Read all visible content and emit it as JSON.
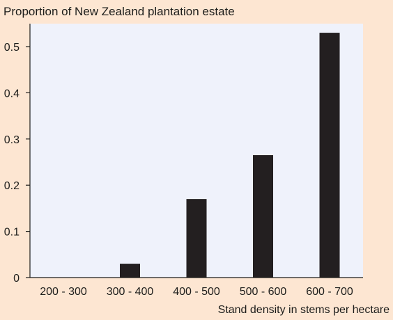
{
  "chart_data": {
    "type": "bar",
    "title": "Proportion of New Zealand plantation estate",
    "xlabel": "Stand density in stems per hectare",
    "ylabel": "",
    "categories": [
      "200 - 300",
      "300 - 400",
      "400 - 500",
      "500 - 600",
      "600 - 700"
    ],
    "values": [
      0,
      0.03,
      0.17,
      0.265,
      0.53
    ],
    "ylim": [
      0,
      0.55
    ],
    "yticks": [
      0,
      0.1,
      0.2,
      0.3,
      0.4,
      0.5
    ],
    "ytick_labels": [
      "0",
      "0.1",
      "0.2",
      "0.3",
      "0.4",
      "0.5"
    ],
    "grid": false,
    "colors": {
      "background": "#fde6d2",
      "plot_area": "#eff2fb",
      "bar": "#231f20",
      "axis": "#1d1d1b"
    }
  }
}
